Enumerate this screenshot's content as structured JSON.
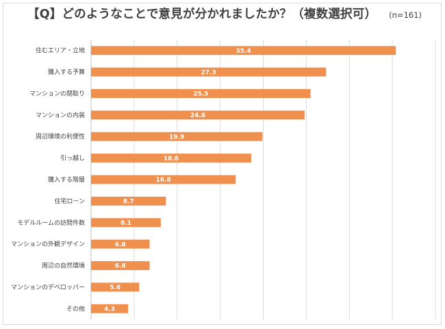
{
  "chart_data": {
    "type": "bar",
    "orientation": "horizontal",
    "title": "【Q】どのようなことで意見が分かれましたか？（複数選択可）",
    "note": "(n=161)",
    "categories": [
      "住むエリア・立地",
      "購入する予算",
      "マンションの間取り",
      "マンションの内装",
      "周辺環境の利便性",
      "引っ越し",
      "購入する階層",
      "住宅ローン",
      "モデルルームの訪問件数",
      "マンションの外観デザイン",
      "周辺の自然環境",
      "マンションのデベロッパー",
      "その他"
    ],
    "values": [
      35.4,
      27.3,
      25.5,
      24.8,
      19.9,
      18.6,
      16.8,
      8.7,
      8.1,
      6.8,
      6.8,
      5.6,
      4.3
    ],
    "xlim": [
      0,
      40
    ],
    "grid": true,
    "xlabel": "",
    "ylabel": "",
    "colors": {
      "bar": "#f0904f",
      "grid": "#d9d9d9",
      "axis": "#bfbfbf",
      "label": "#ffffff",
      "text": "#404040"
    }
  }
}
